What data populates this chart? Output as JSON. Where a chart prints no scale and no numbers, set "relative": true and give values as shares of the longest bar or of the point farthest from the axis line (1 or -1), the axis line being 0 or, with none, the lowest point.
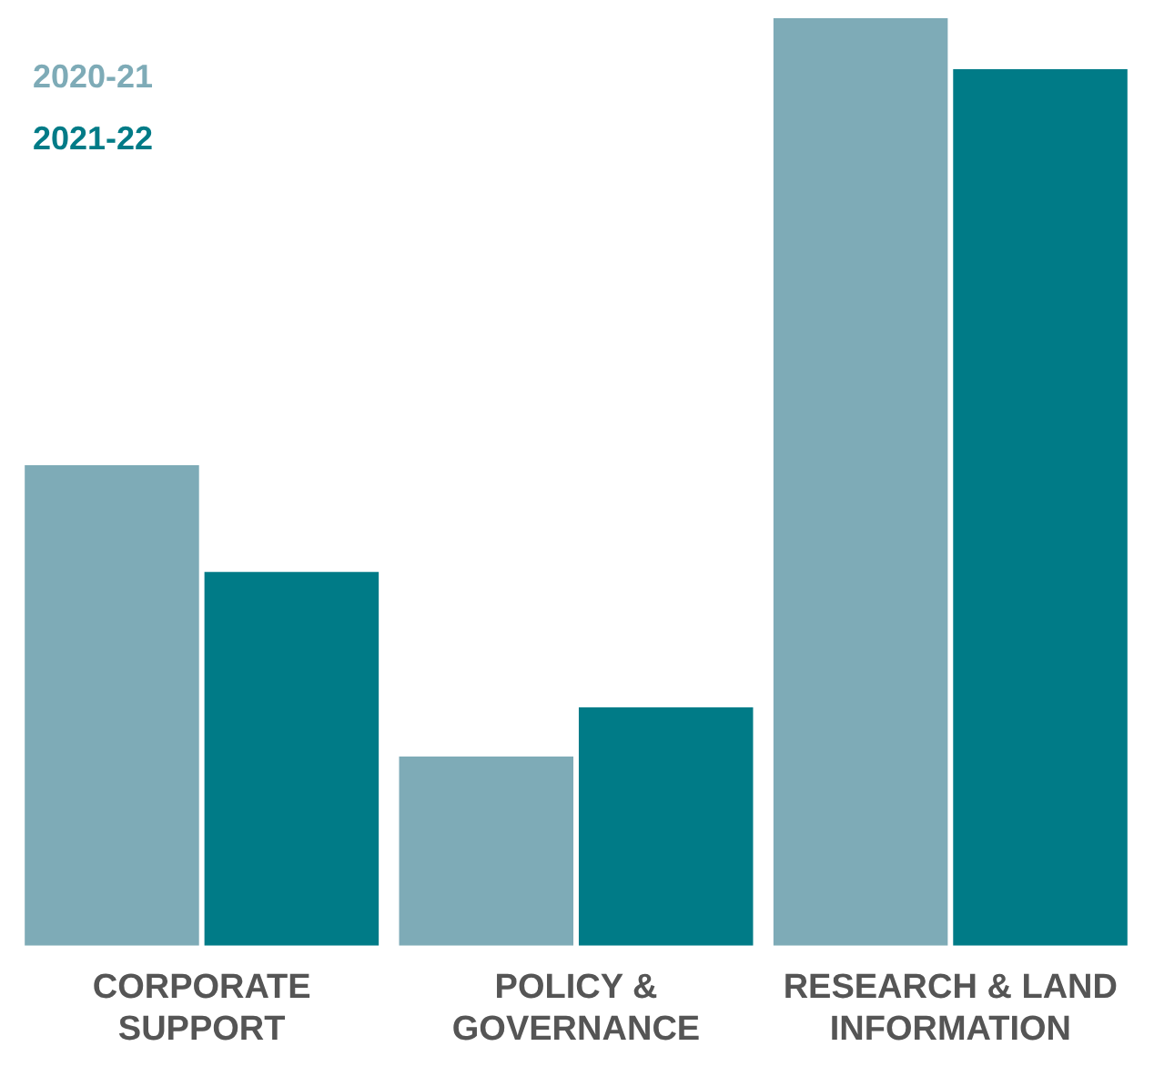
{
  "chart_data": {
    "type": "bar",
    "relative": true,
    "categories": [
      "CORPORATE SUPPORT",
      "POLICY & GOVERNANCE",
      "RESEARCH & LAND INFORMATION"
    ],
    "series": [
      {
        "name": "2020-21",
        "color": "#7eabb7",
        "values": [
          0.518,
          0.204,
          1
        ]
      },
      {
        "name": "2021-22",
        "color": "#007b87",
        "values": [
          0.403,
          0.257,
          0.945
        ]
      }
    ],
    "legend": "top left",
    "grid": false
  }
}
